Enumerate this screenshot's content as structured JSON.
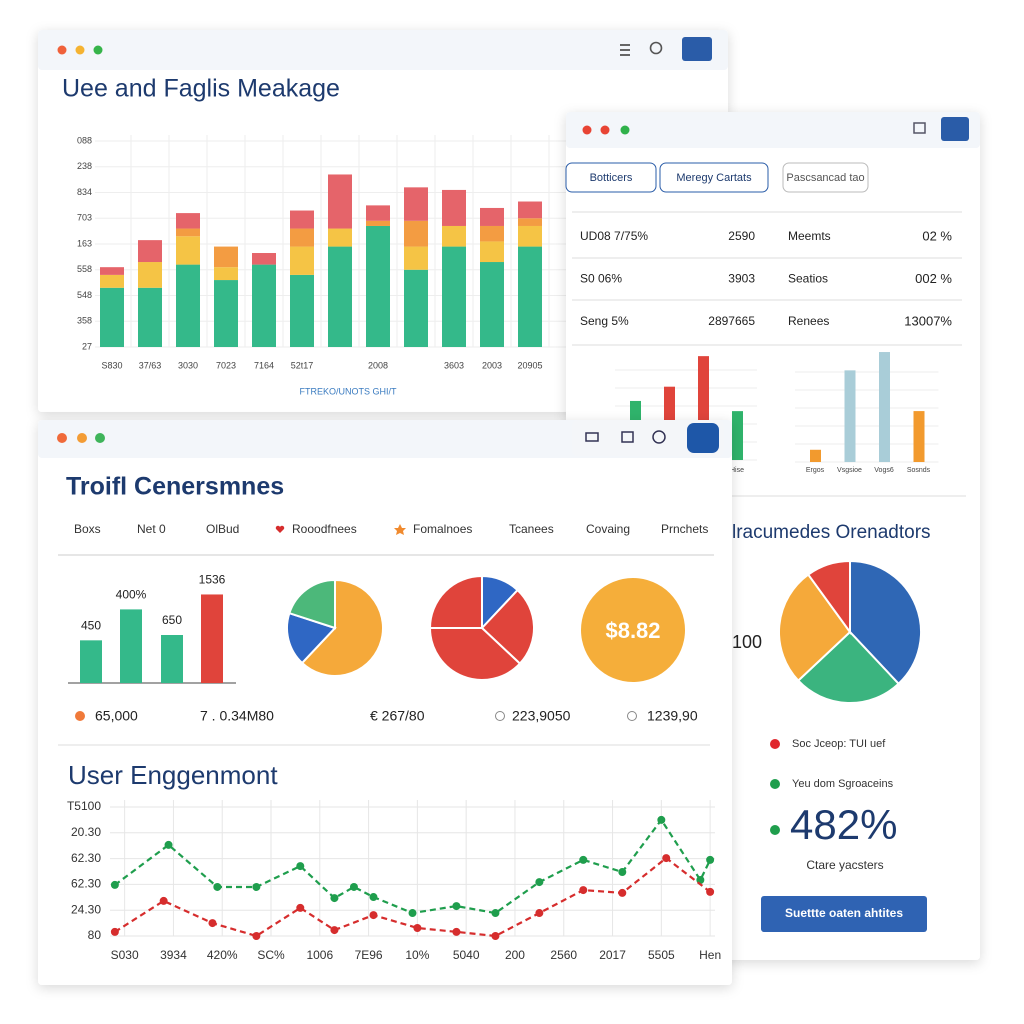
{
  "usage_window": {
    "title": "Uee and Faglis Meakage",
    "chart": {
      "type": "bar",
      "stacked": true,
      "categories": [
        "S830",
        "37/63",
        "3030",
        "7023",
        "7164",
        "52t17",
        null,
        "2008",
        null,
        "3603",
        "2003",
        "20905"
      ],
      "ylim": [
        0,
        8
      ],
      "yticks": [
        {
          "value": 0,
          "label": "27"
        },
        {
          "value": 1,
          "label": "358"
        },
        {
          "value": 2,
          "label": "548"
        },
        {
          "value": 3,
          "label": "558"
        },
        {
          "value": 4,
          "label": "163"
        },
        {
          "value": 5,
          "label": "703"
        },
        {
          "value": 6,
          "label": "834"
        },
        {
          "value": 7,
          "label": "238"
        },
        {
          "value": 8,
          "label": "088"
        }
      ],
      "grid": true,
      "xlabel": "FTREKO/UNOTS GHI/T",
      "series": [
        {
          "color": "#34b98a",
          "values": [
            2.3,
            2.3,
            3.2,
            2.6,
            3.2,
            2.8,
            3.9,
            4.7,
            3.0,
            3.9,
            3.3,
            3.9
          ]
        },
        {
          "color": "#f5c445",
          "values": [
            0.5,
            1.0,
            1.1,
            0.5,
            0,
            1.1,
            0.7,
            0,
            0.9,
            0.8,
            0.8,
            0.8
          ]
        },
        {
          "color": "#f39c42",
          "values": [
            0,
            0,
            0.3,
            0.8,
            0,
            0.7,
            0,
            0.2,
            1.0,
            0,
            0.6,
            0.3
          ]
        },
        {
          "color": "#e5646a",
          "values": [
            0.3,
            0.85,
            0.6,
            0,
            0.45,
            0.7,
            2.1,
            0.6,
            1.3,
            1.4,
            0.7,
            0.65
          ]
        }
      ]
    }
  },
  "details_window": {
    "tabs": [
      "Botticers",
      "Meregy Cartats",
      "Pascsancad tao"
    ],
    "table": {
      "rows": [
        [
          "UD08 7/75%",
          "2590",
          "Meemts",
          "02 %"
        ],
        [
          "S0 06%",
          "3903",
          "Seatios",
          "002 %"
        ],
        [
          "Seng 5%",
          "2897665",
          "Renees",
          "13007%"
        ]
      ]
    },
    "mini_chart_left": {
      "type": "bar",
      "categories": [
        null,
        null,
        null,
        "Hise"
      ],
      "values": [
        58,
        72,
        102,
        48
      ],
      "colors": [
        "#2fb36b",
        "#e0443b",
        "#e0443b",
        "#2fb36b"
      ],
      "ylim": [
        0,
        110
      ]
    },
    "mini_chart_right": {
      "type": "bar",
      "categories": [
        "Ergos",
        "Vsgsioe",
        "Vogs6",
        "Sosnds"
      ],
      "values": [
        12,
        90,
        108,
        50
      ],
      "colors": [
        "#f29a2e",
        "#a9cdd8",
        "#a9cdd8",
        "#f29a2e"
      ],
      "ylim": [
        0,
        110
      ]
    },
    "indicators": {
      "title": "lracumedes Orenadtors",
      "side_text": "100",
      "pie": {
        "type": "pie",
        "values": [
          38,
          25,
          27,
          10
        ],
        "colors": [
          "#2f67b5",
          "#3bb47f",
          "#f5a93a",
          "#e0443b"
        ]
      },
      "legend": [
        {
          "label": "Soc Jceop: TUI uef",
          "color": "#e0272d"
        },
        {
          "label": "Yeu dom Sgroaceins",
          "color": "#1f9e4d"
        }
      ],
      "big_number": "482%",
      "big_caption": "Ctare yacsters",
      "button": "Suettte oaten ahtites"
    }
  },
  "summary_window": {
    "title": "Troifl Cenersmnes",
    "tabs": [
      "Boxs",
      "Net 0",
      "OlBud",
      "Rooodfnees",
      "Fomalnoes",
      "Tcanees",
      "Covaing",
      "Prnchets"
    ],
    "bars": {
      "type": "bar",
      "values": [
        40,
        69,
        45,
        83
      ],
      "colors": [
        "#34b98a",
        "#34b98a",
        "#34b98a",
        "#e0443b"
      ],
      "ylim": [
        0,
        90
      ],
      "bar_texts": [
        "450",
        "400%",
        "650",
        "1536"
      ]
    },
    "pie_a": {
      "type": "pie",
      "values": [
        62,
        18,
        20
      ],
      "colors": [
        "#f5a93a",
        "#2f67c4",
        "#4cb87a"
      ]
    },
    "pie_b": {
      "type": "pie",
      "values": [
        12,
        25,
        38,
        25
      ],
      "colors": [
        "#2f67c4",
        "#e0443b",
        "#e0443b",
        "#e0443b"
      ]
    },
    "coin": "$8.82",
    "stats": [
      "65,000",
      "7 . 0.34M80",
      "€ 267/80",
      "223,9050",
      "1239,90"
    ],
    "engagement": {
      "title": "User Enggenmont",
      "chart": {
        "type": "line",
        "categories": [
          "S030",
          "3934",
          "420%",
          "SC%",
          "1006",
          "7E96",
          "10%",
          "5040",
          "200",
          "2560",
          "2017",
          "5505",
          "Hen"
        ],
        "xlim": [
          -0.3,
          12.1
        ],
        "ylim": [
          0,
          5
        ],
        "yticks": [
          {
            "value": 0,
            "label": "80"
          },
          {
            "value": 1,
            "label": "24.30"
          },
          {
            "value": 2,
            "label": "62.30"
          },
          {
            "value": 3,
            "label": "62.30"
          },
          {
            "value": 4,
            "label": "20.30"
          },
          {
            "value": 5,
            "label": "T5100"
          }
        ],
        "grid": true,
        "series": [
          {
            "color": "#1f9e4d",
            "x": [
              -0.2,
              0.9,
              1.9,
              2.7,
              3.6,
              4.3,
              4.7,
              5.1,
              5.9,
              6.8,
              7.6,
              8.5,
              9.4,
              10.2,
              11.0,
              11.8,
              12.0
            ],
            "values": [
              1.98,
              3.53,
              1.9,
              1.9,
              2.71,
              1.47,
              1.9,
              1.51,
              0.89,
              1.16,
              0.89,
              2.09,
              2.95,
              2.48,
              4.5,
              2.17,
              2.95
            ]
          },
          {
            "color": "#d62d2d",
            "x": [
              -0.2,
              0.8,
              1.8,
              2.7,
              3.6,
              4.3,
              5.1,
              6.0,
              6.8,
              7.6,
              8.5,
              9.4,
              10.2,
              11.1,
              12.0
            ],
            "values": [
              0.16,
              1.36,
              0.5,
              0,
              1.09,
              0.23,
              0.81,
              0.31,
              0.16,
              0,
              0.89,
              1.78,
              1.67,
              3.02,
              1.71
            ]
          }
        ]
      }
    }
  }
}
